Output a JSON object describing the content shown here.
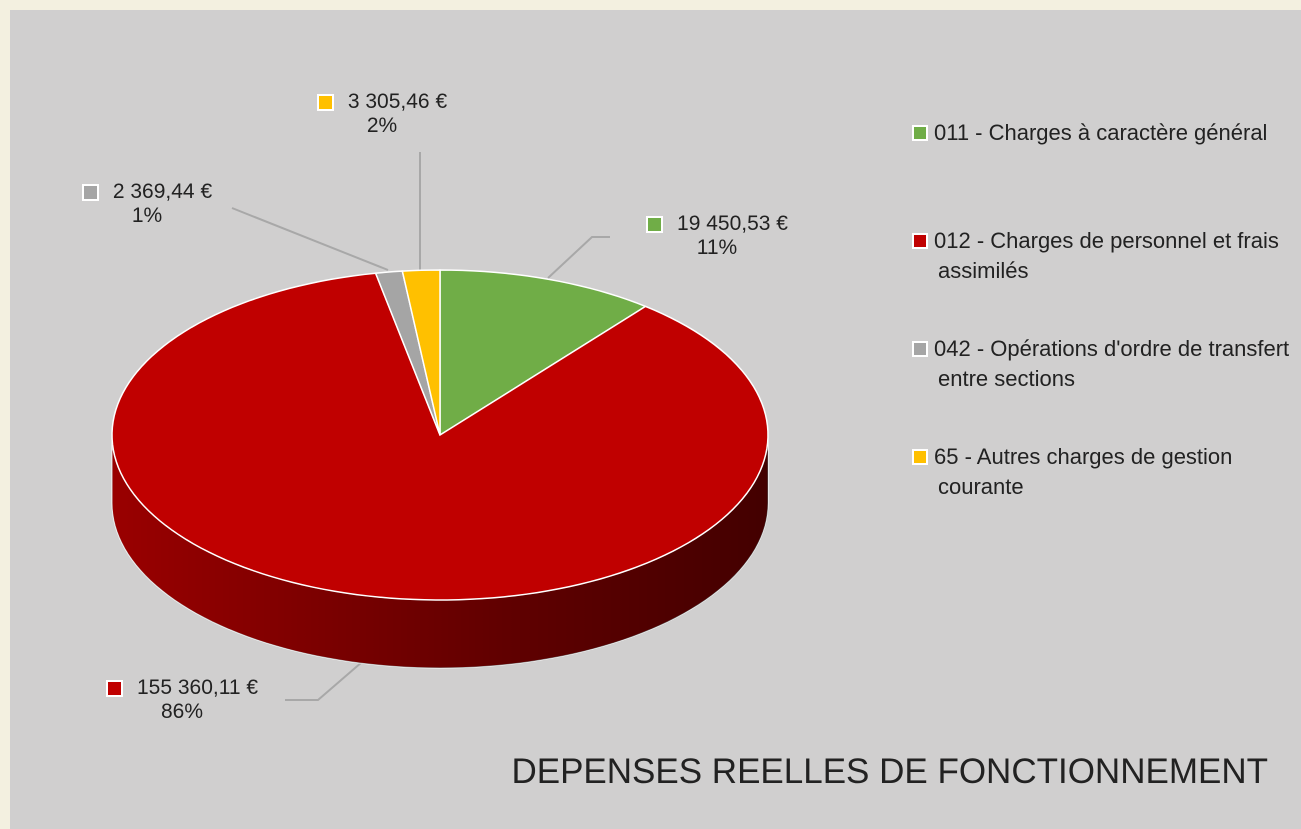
{
  "chart_data": {
    "type": "pie",
    "title": "DEPENSES REELLES DE FONCTIONNEMENT",
    "categories": [
      "011 - Charges à caractère général",
      "012 - Charges de personnel et frais assimilés",
      "042 - Opérations d'ordre de transfert entre sections",
      "65 - Autres charges de gestion courante"
    ],
    "values": [
      19450.53,
      155360.11,
      2369.44,
      3305.46
    ],
    "value_labels": [
      "19 450,53 €",
      "155 360,11 €",
      "2 369,44 €",
      "3 305,46 €"
    ],
    "percent_labels": [
      "11%",
      "86%",
      "1%",
      "2%"
    ],
    "colors": [
      "#70ad47",
      "#c00000",
      "#a5a5a5",
      "#ffc000"
    ],
    "legend": "right"
  }
}
